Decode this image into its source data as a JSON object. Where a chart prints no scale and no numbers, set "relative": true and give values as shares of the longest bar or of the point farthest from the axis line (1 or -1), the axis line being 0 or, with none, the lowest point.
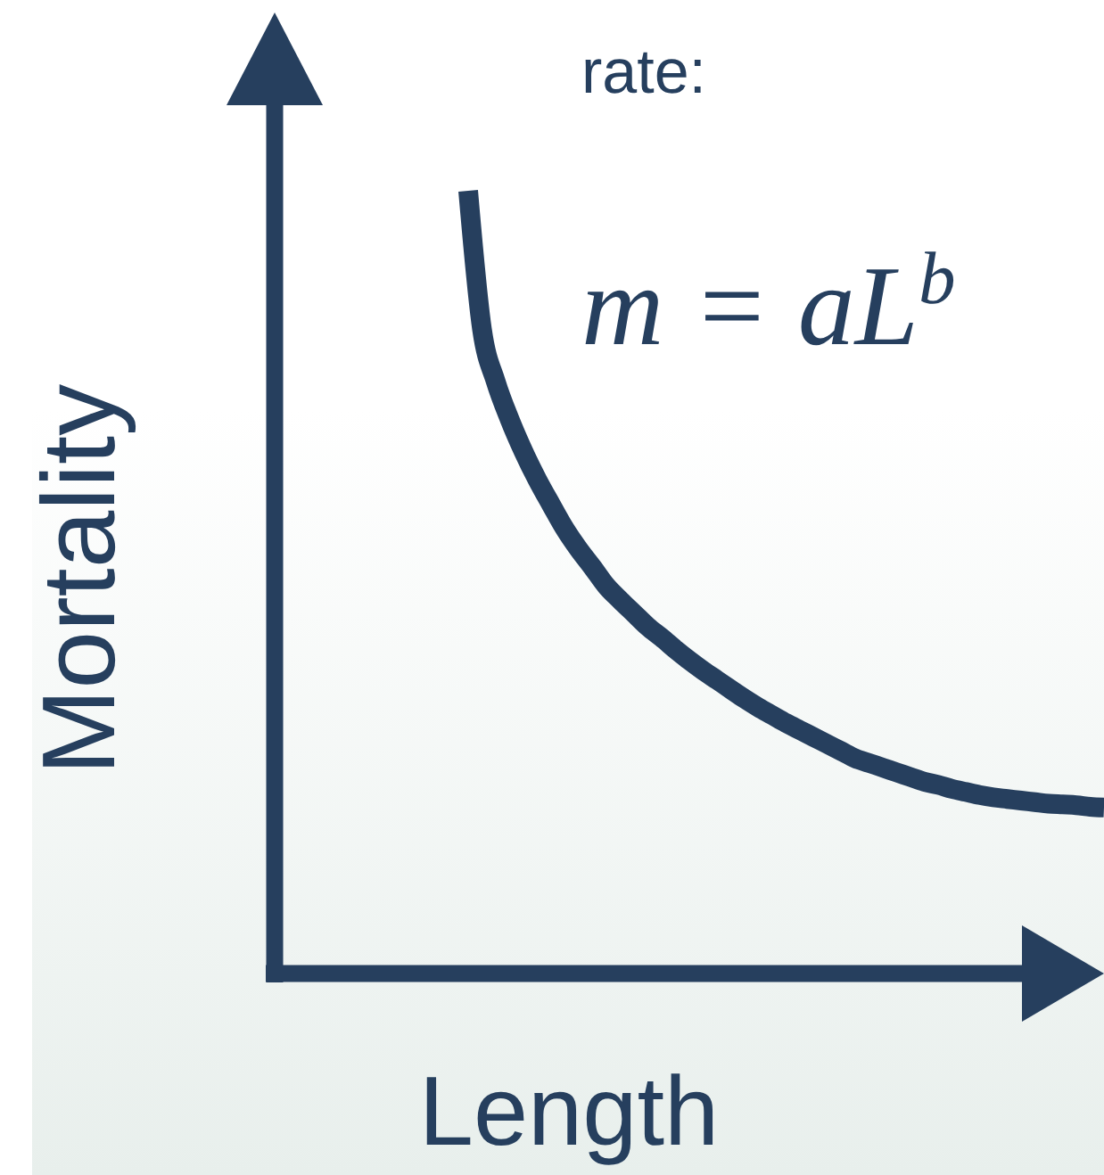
{
  "chart_data": {
    "type": "line",
    "relative": true,
    "xlabel": "Length",
    "ylabel": "Mortality",
    "annotations": [
      "rate:",
      "m = aL$^{b}$"
    ],
    "categories": [
      null,
      null,
      null,
      null,
      null,
      null,
      null,
      null,
      null,
      null,
      null,
      null,
      null,
      null,
      null,
      null,
      null,
      null,
      null,
      null,
      null,
      null,
      null,
      null,
      null,
      null,
      null,
      null,
      null,
      null,
      null,
      null,
      null,
      null,
      null,
      null,
      null,
      null,
      null,
      null,
      null,
      null,
      null,
      null,
      null,
      null,
      null,
      null,
      null,
      null,
      null,
      null,
      null,
      null,
      null,
      null,
      null,
      null,
      null,
      null,
      null
    ],
    "values": [
      null,
      null,
      null,
      null,
      null,
      null,
      null,
      null,
      null,
      null,
      null,
      null,
      null,
      null,
      1.0,
      0.823,
      0.756,
      0.708,
      0.667,
      0.631,
      0.599,
      0.568,
      0.542,
      0.519,
      0.495,
      0.477,
      0.46,
      0.443,
      0.429,
      0.414,
      0.4,
      0.387,
      0.375,
      0.363,
      0.351,
      0.34,
      0.33,
      0.32,
      0.311,
      0.302,
      0.293,
      0.284,
      0.275,
      0.269,
      0.263,
      0.257,
      0.251,
      0.245,
      0.241,
      0.236,
      0.232,
      0.228,
      0.225,
      0.223,
      0.221,
      0.219,
      0.217,
      0.216,
      0.215,
      0.213,
      0.212
    ],
    "color": "#263f5e"
  }
}
